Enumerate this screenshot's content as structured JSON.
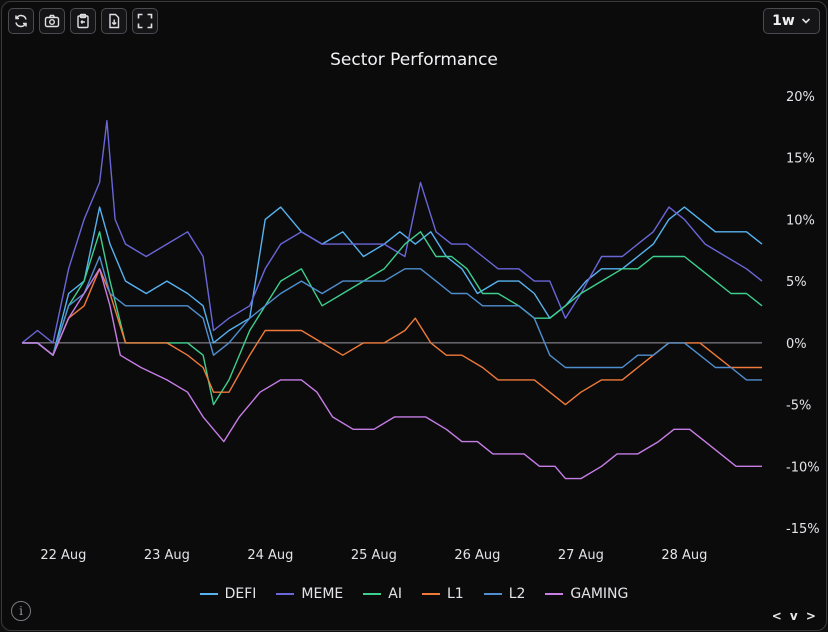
{
  "toolbar": {
    "buttons": [
      {
        "icon": "refresh-icon"
      },
      {
        "icon": "camera-icon"
      },
      {
        "icon": "clipboard-icon"
      },
      {
        "icon": "file-download-icon"
      },
      {
        "icon": "fullscreen-icon"
      }
    ]
  },
  "range_select": {
    "selected": "1w"
  },
  "footer": {
    "nav_label": "< v >"
  },
  "colors": {
    "DEFI": "#56b3f0",
    "MEME": "#6a66d8",
    "AI": "#3ecf8e",
    "L1": "#f07a3a",
    "L2": "#4f8fcf",
    "GAMING": "#c77de6",
    "zero_line": "#9a9aa0"
  },
  "chart_data": {
    "type": "line",
    "title": "Sector Performance",
    "xlabel": "",
    "ylabel": "",
    "x_tick_labels": [
      "22 Aug",
      "23 Aug",
      "24 Aug",
      "25 Aug",
      "26 Aug",
      "27 Aug",
      "28 Aug"
    ],
    "x_range_days": [
      21.6,
      28.75
    ],
    "y_tick_labels": [
      "20%",
      "15%",
      "10%",
      "5%",
      "0%",
      "-5%",
      "-10%",
      "-15%"
    ],
    "y_ticks": [
      20,
      15,
      10,
      5,
      0,
      -5,
      -10,
      -15
    ],
    "ylim": [
      -15,
      20
    ],
    "unit": "%",
    "grid": false,
    "zero_line": true,
    "legend_position": "bottom",
    "series": [
      {
        "name": "DEFI",
        "points": [
          [
            21.6,
            0
          ],
          [
            21.75,
            0
          ],
          [
            21.9,
            -1
          ],
          [
            22.05,
            4
          ],
          [
            22.2,
            5
          ],
          [
            22.35,
            11
          ],
          [
            22.45,
            8
          ],
          [
            22.6,
            5
          ],
          [
            22.8,
            4
          ],
          [
            23.0,
            5
          ],
          [
            23.2,
            4
          ],
          [
            23.35,
            3
          ],
          [
            23.45,
            0
          ],
          [
            23.6,
            1
          ],
          [
            23.8,
            2
          ],
          [
            23.95,
            10
          ],
          [
            24.1,
            11
          ],
          [
            24.3,
            9
          ],
          [
            24.5,
            8
          ],
          [
            24.7,
            9
          ],
          [
            24.9,
            7
          ],
          [
            25.1,
            8
          ],
          [
            25.25,
            9
          ],
          [
            25.4,
            8
          ],
          [
            25.55,
            9
          ],
          [
            25.7,
            7
          ],
          [
            25.85,
            6
          ],
          [
            26.0,
            4
          ],
          [
            26.2,
            5
          ],
          [
            26.4,
            5
          ],
          [
            26.55,
            4
          ],
          [
            26.7,
            2
          ],
          [
            26.85,
            3
          ],
          [
            27.05,
            5
          ],
          [
            27.2,
            6
          ],
          [
            27.4,
            6
          ],
          [
            27.55,
            7
          ],
          [
            27.7,
            8
          ],
          [
            27.85,
            10
          ],
          [
            28.0,
            11
          ],
          [
            28.15,
            10
          ],
          [
            28.3,
            9
          ],
          [
            28.45,
            9
          ],
          [
            28.6,
            9
          ],
          [
            28.75,
            8
          ]
        ]
      },
      {
        "name": "MEME",
        "points": [
          [
            21.6,
            0
          ],
          [
            21.75,
            1
          ],
          [
            21.9,
            0
          ],
          [
            22.05,
            6
          ],
          [
            22.2,
            10
          ],
          [
            22.35,
            13
          ],
          [
            22.42,
            18
          ],
          [
            22.5,
            10
          ],
          [
            22.6,
            8
          ],
          [
            22.8,
            7
          ],
          [
            23.0,
            8
          ],
          [
            23.2,
            9
          ],
          [
            23.35,
            7
          ],
          [
            23.45,
            1
          ],
          [
            23.6,
            2
          ],
          [
            23.8,
            3
          ],
          [
            23.95,
            6
          ],
          [
            24.1,
            8
          ],
          [
            24.3,
            9
          ],
          [
            24.5,
            8
          ],
          [
            24.7,
            8
          ],
          [
            24.9,
            8
          ],
          [
            25.1,
            8
          ],
          [
            25.3,
            7
          ],
          [
            25.45,
            13
          ],
          [
            25.6,
            9
          ],
          [
            25.75,
            8
          ],
          [
            25.9,
            8
          ],
          [
            26.05,
            7
          ],
          [
            26.2,
            6
          ],
          [
            26.4,
            6
          ],
          [
            26.55,
            5
          ],
          [
            26.7,
            5
          ],
          [
            26.85,
            2
          ],
          [
            27.0,
            4
          ],
          [
            27.2,
            7
          ],
          [
            27.4,
            7
          ],
          [
            27.55,
            8
          ],
          [
            27.7,
            9
          ],
          [
            27.85,
            11
          ],
          [
            28.0,
            10
          ],
          [
            28.2,
            8
          ],
          [
            28.4,
            7
          ],
          [
            28.6,
            6
          ],
          [
            28.75,
            5
          ]
        ]
      },
      {
        "name": "AI",
        "points": [
          [
            21.6,
            0
          ],
          [
            21.75,
            0
          ],
          [
            21.9,
            -1
          ],
          [
            22.05,
            3
          ],
          [
            22.2,
            5
          ],
          [
            22.35,
            9
          ],
          [
            22.45,
            5
          ],
          [
            22.6,
            0
          ],
          [
            22.8,
            0
          ],
          [
            23.0,
            0
          ],
          [
            23.2,
            0
          ],
          [
            23.35,
            -1
          ],
          [
            23.45,
            -5
          ],
          [
            23.6,
            -3
          ],
          [
            23.8,
            1
          ],
          [
            23.95,
            3
          ],
          [
            24.1,
            5
          ],
          [
            24.3,
            6
          ],
          [
            24.5,
            3
          ],
          [
            24.7,
            4
          ],
          [
            24.9,
            5
          ],
          [
            25.1,
            6
          ],
          [
            25.3,
            8
          ],
          [
            25.45,
            9
          ],
          [
            25.6,
            7
          ],
          [
            25.75,
            7
          ],
          [
            25.9,
            6
          ],
          [
            26.05,
            4
          ],
          [
            26.2,
            4
          ],
          [
            26.4,
            3
          ],
          [
            26.55,
            2
          ],
          [
            26.7,
            2
          ],
          [
            26.85,
            3
          ],
          [
            27.0,
            4
          ],
          [
            27.2,
            5
          ],
          [
            27.4,
            6
          ],
          [
            27.55,
            6
          ],
          [
            27.7,
            7
          ],
          [
            27.85,
            7
          ],
          [
            28.0,
            7
          ],
          [
            28.15,
            6
          ],
          [
            28.3,
            5
          ],
          [
            28.45,
            4
          ],
          [
            28.6,
            4
          ],
          [
            28.75,
            3
          ]
        ]
      },
      {
        "name": "L1",
        "points": [
          [
            21.6,
            0
          ],
          [
            21.75,
            0
          ],
          [
            21.9,
            -1
          ],
          [
            22.05,
            2
          ],
          [
            22.2,
            3
          ],
          [
            22.35,
            6
          ],
          [
            22.45,
            4
          ],
          [
            22.6,
            0
          ],
          [
            22.8,
            0
          ],
          [
            23.0,
            0
          ],
          [
            23.2,
            -1
          ],
          [
            23.35,
            -2
          ],
          [
            23.45,
            -4
          ],
          [
            23.6,
            -4
          ],
          [
            23.8,
            -1
          ],
          [
            23.95,
            1
          ],
          [
            24.1,
            1
          ],
          [
            24.3,
            1
          ],
          [
            24.5,
            0
          ],
          [
            24.7,
            -1
          ],
          [
            24.9,
            0
          ],
          [
            25.1,
            0
          ],
          [
            25.3,
            1
          ],
          [
            25.4,
            2
          ],
          [
            25.55,
            0
          ],
          [
            25.7,
            -1
          ],
          [
            25.85,
            -1
          ],
          [
            26.05,
            -2
          ],
          [
            26.2,
            -3
          ],
          [
            26.4,
            -3
          ],
          [
            26.55,
            -3
          ],
          [
            26.7,
            -4
          ],
          [
            26.85,
            -5
          ],
          [
            27.0,
            -4
          ],
          [
            27.2,
            -3
          ],
          [
            27.4,
            -3
          ],
          [
            27.55,
            -2
          ],
          [
            27.7,
            -1
          ],
          [
            27.85,
            0
          ],
          [
            28.0,
            0
          ],
          [
            28.15,
            0
          ],
          [
            28.3,
            -1
          ],
          [
            28.45,
            -2
          ],
          [
            28.6,
            -2
          ],
          [
            28.75,
            -2
          ]
        ]
      },
      {
        "name": "L2",
        "points": [
          [
            21.6,
            0
          ],
          [
            21.75,
            0
          ],
          [
            21.9,
            -1
          ],
          [
            22.05,
            3
          ],
          [
            22.2,
            4
          ],
          [
            22.35,
            7
          ],
          [
            22.45,
            4
          ],
          [
            22.6,
            3
          ],
          [
            22.8,
            3
          ],
          [
            23.0,
            3
          ],
          [
            23.2,
            3
          ],
          [
            23.35,
            2
          ],
          [
            23.45,
            -1
          ],
          [
            23.6,
            0
          ],
          [
            23.8,
            2
          ],
          [
            23.95,
            3
          ],
          [
            24.1,
            4
          ],
          [
            24.3,
            5
          ],
          [
            24.5,
            4
          ],
          [
            24.7,
            5
          ],
          [
            24.9,
            5
          ],
          [
            25.1,
            5
          ],
          [
            25.3,
            6
          ],
          [
            25.45,
            6
          ],
          [
            25.6,
            5
          ],
          [
            25.75,
            4
          ],
          [
            25.9,
            4
          ],
          [
            26.05,
            3
          ],
          [
            26.2,
            3
          ],
          [
            26.4,
            3
          ],
          [
            26.55,
            2
          ],
          [
            26.7,
            -1
          ],
          [
            26.85,
            -2
          ],
          [
            27.0,
            -2
          ],
          [
            27.2,
            -2
          ],
          [
            27.4,
            -2
          ],
          [
            27.55,
            -1
          ],
          [
            27.7,
            -1
          ],
          [
            27.85,
            0
          ],
          [
            28.0,
            0
          ],
          [
            28.15,
            -1
          ],
          [
            28.3,
            -2
          ],
          [
            28.45,
            -2
          ],
          [
            28.6,
            -3
          ],
          [
            28.75,
            -3
          ]
        ]
      },
      {
        "name": "GAMING",
        "points": [
          [
            21.6,
            0
          ],
          [
            21.75,
            0
          ],
          [
            21.9,
            -1
          ],
          [
            22.05,
            2
          ],
          [
            22.2,
            4
          ],
          [
            22.35,
            6
          ],
          [
            22.45,
            3
          ],
          [
            22.55,
            -1
          ],
          [
            22.75,
            -2
          ],
          [
            23.0,
            -3
          ],
          [
            23.2,
            -4
          ],
          [
            23.35,
            -6
          ],
          [
            23.45,
            -7
          ],
          [
            23.55,
            -8
          ],
          [
            23.7,
            -6
          ],
          [
            23.9,
            -4
          ],
          [
            24.1,
            -3
          ],
          [
            24.3,
            -3
          ],
          [
            24.45,
            -4
          ],
          [
            24.6,
            -6
          ],
          [
            24.8,
            -7
          ],
          [
            25.0,
            -7
          ],
          [
            25.2,
            -6
          ],
          [
            25.35,
            -6
          ],
          [
            25.5,
            -6
          ],
          [
            25.7,
            -7
          ],
          [
            25.85,
            -8
          ],
          [
            26.0,
            -8
          ],
          [
            26.15,
            -9
          ],
          [
            26.3,
            -9
          ],
          [
            26.45,
            -9
          ],
          [
            26.6,
            -10
          ],
          [
            26.75,
            -10
          ],
          [
            26.85,
            -11
          ],
          [
            27.0,
            -11
          ],
          [
            27.2,
            -10
          ],
          [
            27.35,
            -9
          ],
          [
            27.55,
            -9
          ],
          [
            27.75,
            -8
          ],
          [
            27.9,
            -7
          ],
          [
            28.05,
            -7
          ],
          [
            28.2,
            -8
          ],
          [
            28.35,
            -9
          ],
          [
            28.5,
            -10
          ],
          [
            28.75,
            -10
          ]
        ]
      }
    ]
  }
}
